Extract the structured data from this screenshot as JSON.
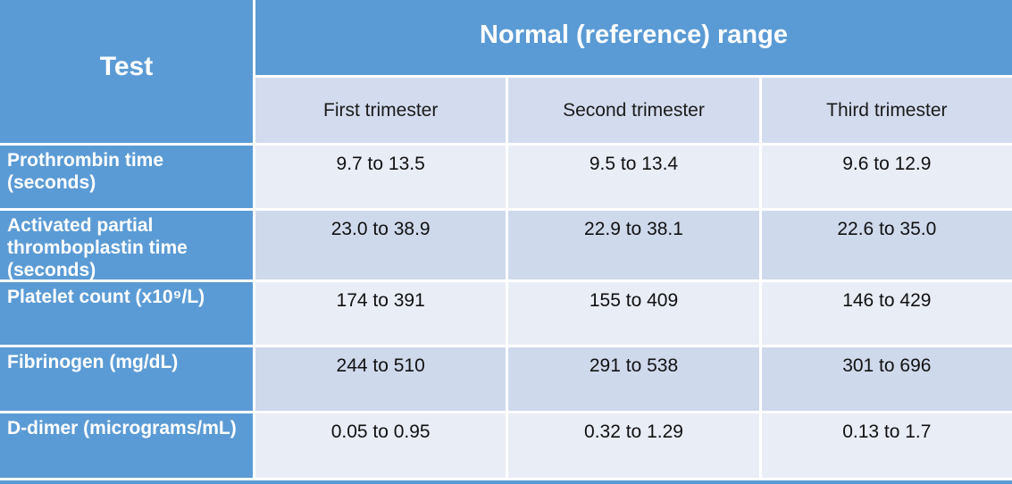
{
  "table": {
    "corner_header": "Test",
    "group_header": "Normal (reference) range",
    "column_headers": [
      "First trimester",
      "Second trimester",
      "Third trimester"
    ],
    "rows": [
      {
        "test": "Prothrombin time (seconds)",
        "values": [
          "9.7 to 13.5",
          "9.5 to 13.4",
          "9.6 to 12.9"
        ]
      },
      {
        "test": "Activated partial thromboplastin time (seconds)",
        "values": [
          "23.0 to 38.9",
          "22.9 to 38.1",
          "22.6 to 35.0"
        ]
      },
      {
        "test": "Platelet count (x10⁹/L)",
        "values": [
          "174 to 391",
          "155 to 409",
          "146 to 429"
        ]
      },
      {
        "test": "Fibrinogen (mg/dL)",
        "values": [
          "244 to 510",
          "291 to 538",
          "301 to 696"
        ]
      },
      {
        "test": "D-dimer (micrograms/mL)",
        "values": [
          "0.05 to 0.95",
          "0.32 to 1.29",
          "0.13 to 1.7"
        ]
      }
    ],
    "colors": {
      "header_blue": "#5b9bd5",
      "subheader_band": "#d3dcee",
      "row_band_light": "#e9edf6",
      "row_band_dark": "#cfd9ec",
      "header_text": "#ffffff",
      "body_text": "#111111"
    }
  }
}
